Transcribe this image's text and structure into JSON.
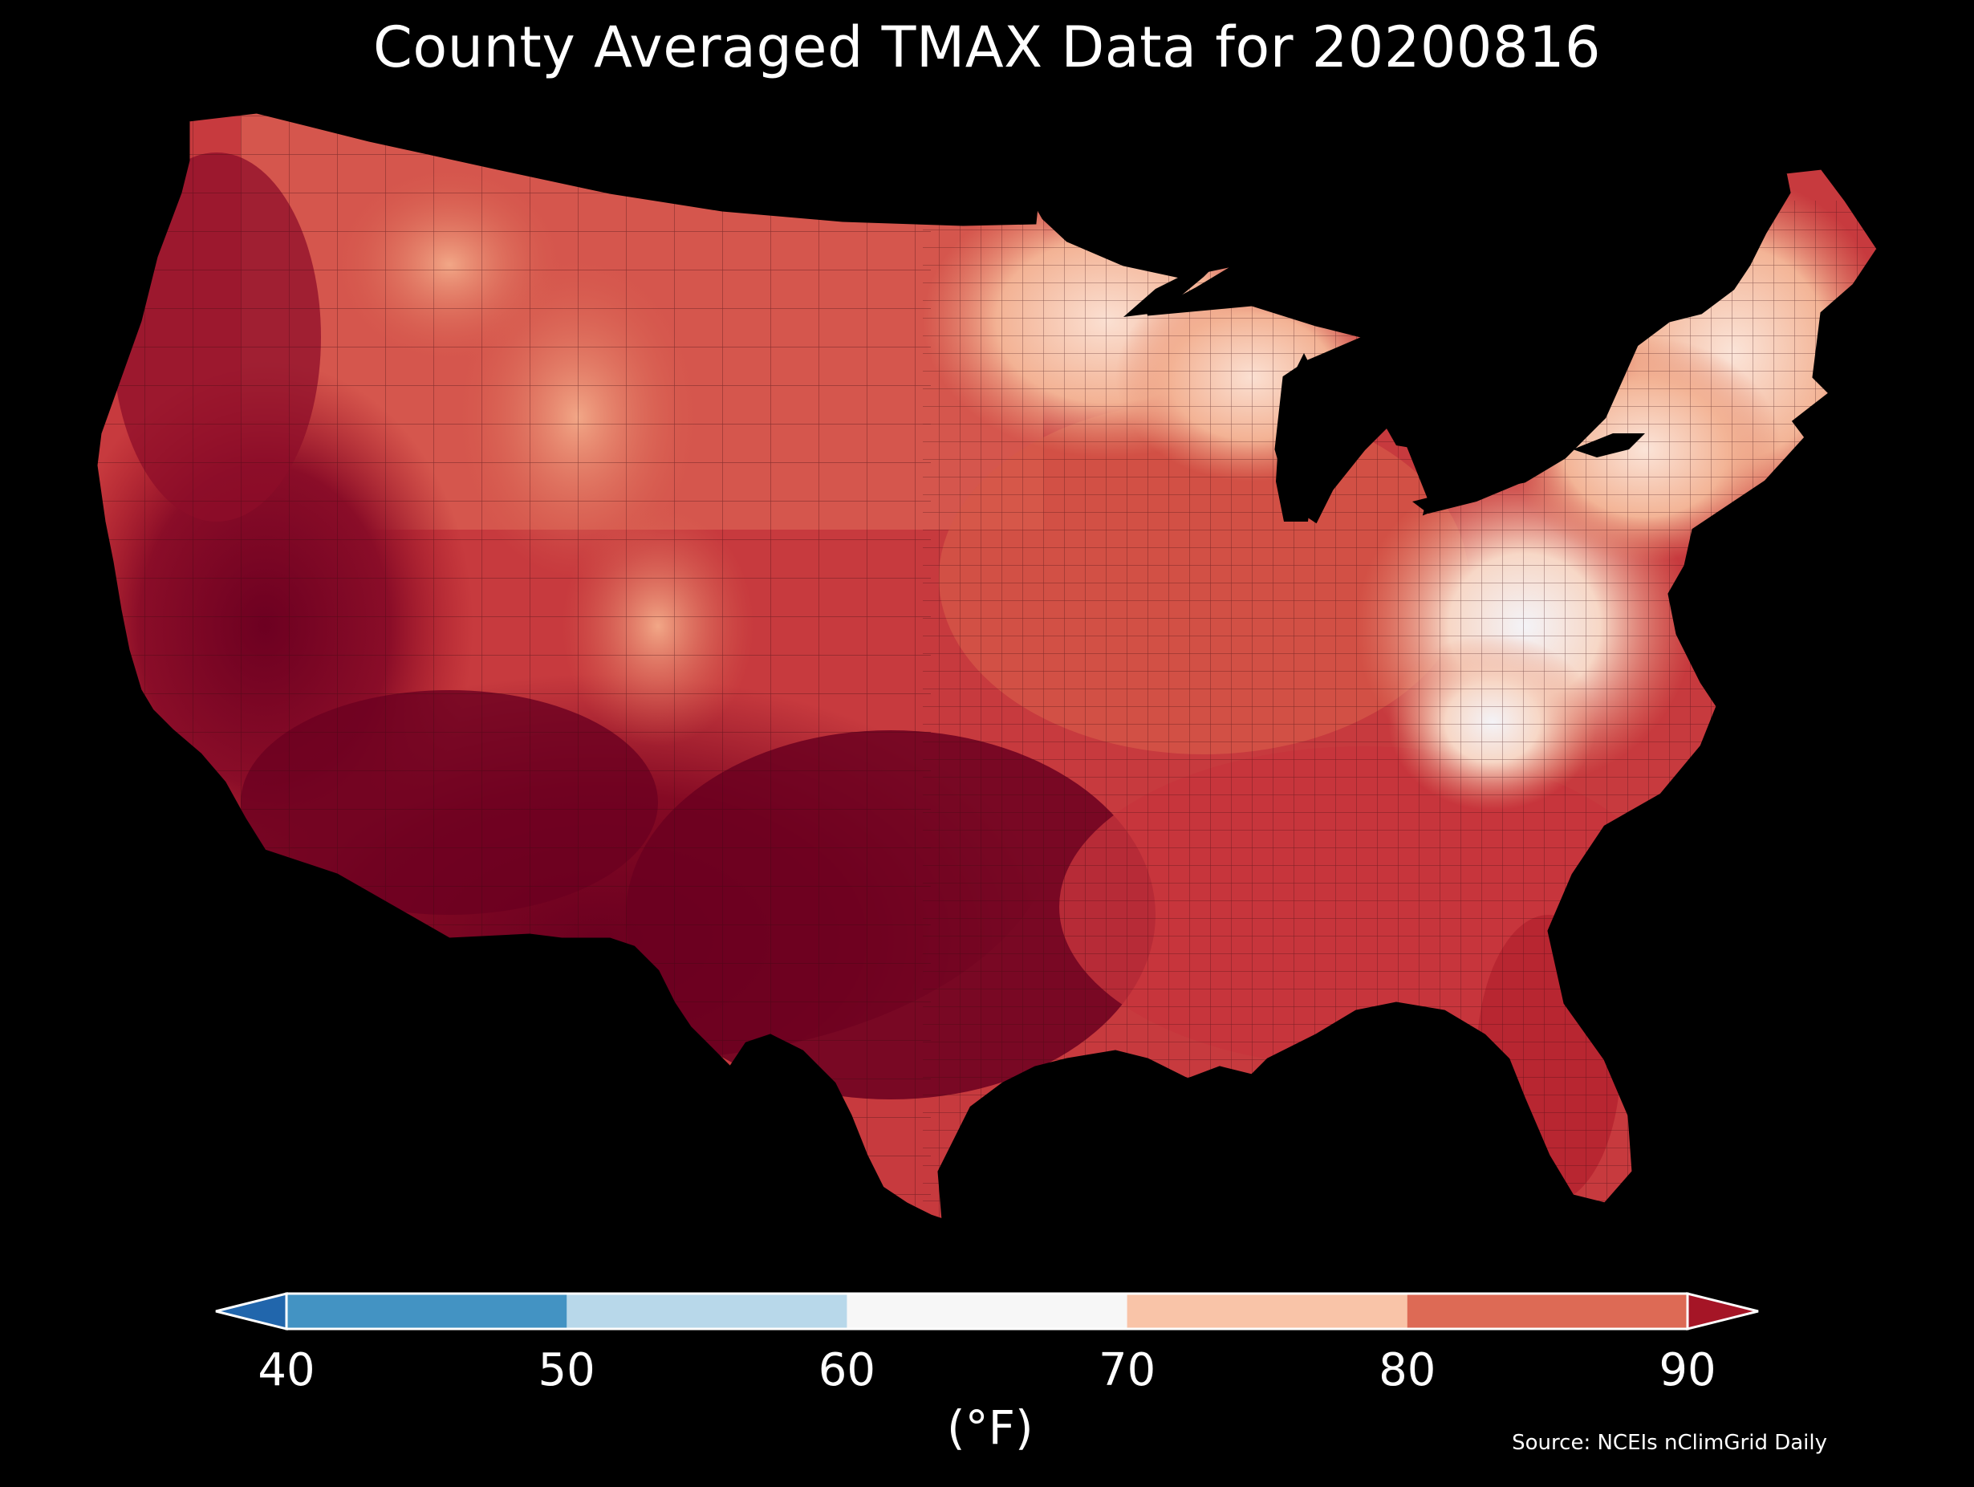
{
  "title": "County Averaged TMAX Data for 20200816",
  "legend": {
    "unit_label": "(°F)",
    "ticks": [
      "40",
      "50",
      "60",
      "70",
      "80",
      "90"
    ],
    "bins": [
      {
        "range": "<40",
        "color": "#2166ac"
      },
      {
        "range": "40-50",
        "color": "#4393c3"
      },
      {
        "range": "50-60",
        "color": "#b8d8ea"
      },
      {
        "range": "60-70",
        "color": "#f7f7f7"
      },
      {
        "range": "70-80",
        "color": "#f9c4a8"
      },
      {
        "range": "80-90",
        "color": "#dd6a55"
      },
      {
        "range": ">90",
        "color": "#a51526"
      }
    ]
  },
  "map": {
    "region": "Contiguous United States",
    "level": "county",
    "dominant_colors": {
      "hot_south_southwest": "#6b0020",
      "very_warm": "#a51526",
      "warm": "#dd6a55",
      "mild_north_appalachia": "#f9c4a8",
      "cool_appalachia_core": "#f4f1f1",
      "background": "#000000"
    }
  },
  "source": "Source: NCEIs nClimGrid Daily"
}
